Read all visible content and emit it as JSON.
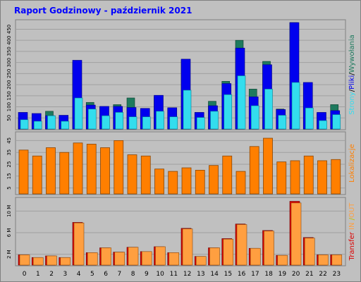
{
  "title": "Raport Godzinowy -  październik 2021",
  "colors": {
    "frame_bg": "#c0c0c0",
    "plot_bg": "#c0c0c0",
    "title": "#0000ff",
    "gridline": "#a0a0a0",
    "strony": "#1e7a5e",
    "pliki": "#0000ee",
    "wywolania": "#33ddee",
    "lokalizacje": "#ff7f00",
    "transfer_in": "#ff9f40",
    "transfer_out": "#dd0000"
  },
  "chart_data": [
    {
      "type": "bar",
      "panel": "top",
      "categories": [
        "0",
        "1",
        "2",
        "3",
        "4",
        "5",
        "6",
        "7",
        "8",
        "9",
        "10",
        "11",
        "12",
        "13",
        "14",
        "15",
        "16",
        "17",
        "18",
        "19",
        "20",
        "21",
        "22",
        "23"
      ],
      "y_ticks": [
        "50",
        "100",
        "150",
        "200",
        "250",
        "300",
        "350",
        "400",
        "450"
      ],
      "ylim": [
        0,
        480
      ],
      "legend": [
        {
          "label": "Strony",
          "color": "#1e7a5e"
        },
        {
          "label": "/",
          "color": "#000000"
        },
        {
          "label": "Pliki",
          "color": "#0000ee"
        },
        {
          "label": "/",
          "color": "#000000"
        },
        {
          "label": "Wywołania",
          "color": "#1e7a5e"
        }
      ],
      "series": [
        {
          "name": "Strony",
          "values": [
            50,
            42,
            80,
            45,
            300,
            120,
            100,
            110,
            140,
            85,
            145,
            90,
            310,
            70,
            125,
            215,
            400,
            180,
            305,
            90,
            480,
            205,
            70,
            110
          ]
        },
        {
          "name": "Pliki",
          "values": [
            75,
            70,
            60,
            62,
            310,
            108,
            102,
            102,
            97,
            93,
            152,
            96,
            315,
            75,
            105,
            205,
            365,
            145,
            290,
            88,
            480,
            210,
            75,
            83
          ]
        },
        {
          "name": "Wywołania",
          "values": [
            42,
            35,
            60,
            35,
            140,
            90,
            60,
            75,
            55,
            55,
            80,
            55,
            175,
            52,
            80,
            155,
            240,
            105,
            180,
            62,
            210,
            95,
            38,
            65
          ]
        }
      ]
    },
    {
      "type": "bar",
      "panel": "middle",
      "categories": [
        "0",
        "1",
        "2",
        "3",
        "4",
        "5",
        "6",
        "7",
        "8",
        "9",
        "10",
        "11",
        "12",
        "13",
        "14",
        "15",
        "16",
        "17",
        "18",
        "19",
        "20",
        "21",
        "22",
        "23"
      ],
      "y_ticks": [
        "5",
        "15",
        "25",
        "35",
        "45"
      ],
      "ylim": [
        0,
        50
      ],
      "legend": [
        {
          "label": "Lokalizacje",
          "color": "#ff7f00"
        }
      ],
      "series": [
        {
          "name": "Lokalizacje",
          "values": [
            37,
            32,
            39,
            35,
            43,
            42,
            39,
            45,
            33,
            32,
            21,
            19,
            22,
            20,
            24,
            32,
            19,
            40,
            47,
            27,
            28,
            32,
            28,
            29
          ]
        }
      ]
    },
    {
      "type": "bar",
      "panel": "bottom",
      "categories": [
        "0",
        "1",
        "2",
        "3",
        "4",
        "5",
        "6",
        "7",
        "8",
        "9",
        "10",
        "11",
        "12",
        "13",
        "14",
        "15",
        "16",
        "17",
        "18",
        "19",
        "20",
        "21",
        "22",
        "23"
      ],
      "y_ticks": [
        "2 M",
        "6 M",
        "10 M"
      ],
      "ylim": [
        0,
        12
      ],
      "legend": [
        {
          "label": "Transfer",
          "color": "#dd0000"
        },
        {
          "label": " IN ",
          "color": "#ff9f40"
        },
        {
          "label": "/",
          "color": "#c0c000"
        },
        {
          "label": "OUT",
          "color": "#ff9f40"
        }
      ],
      "series": [
        {
          "name": "OUT",
          "values": [
            1.9,
            1.4,
            1.7,
            1.4,
            7.9,
            2.3,
            3.2,
            2.4,
            3.3,
            2.5,
            3.4,
            2.3,
            6.8,
            1.6,
            3.2,
            4.9,
            7.6,
            3.1,
            6.4,
            1.8,
            11.8,
            5.1,
            1.9,
            1.9
          ]
        },
        {
          "name": "IN",
          "values": [
            1.9,
            1.4,
            1.7,
            1.4,
            7.8,
            2.3,
            3.2,
            2.4,
            3.3,
            2.5,
            3.4,
            2.3,
            6.7,
            1.6,
            3.2,
            4.8,
            7.5,
            3.1,
            6.3,
            1.8,
            11.5,
            5.0,
            1.9,
            1.9
          ]
        }
      ]
    }
  ]
}
